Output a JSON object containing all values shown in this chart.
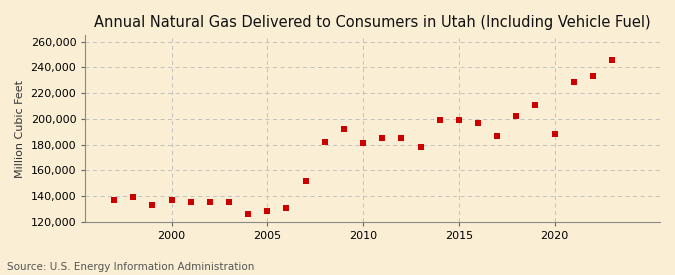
{
  "title": "Annual Natural Gas Delivered to Consumers in Utah (Including Vehicle Fuel)",
  "ylabel": "Million Cubic Feet",
  "source": "Source: U.S. Energy Information Administration",
  "background_color": "#faefd4",
  "plot_background_color": "#faefd4",
  "marker_color": "#cc0000",
  "grid_color": "#bbbbbb",
  "years": [
    1997,
    1998,
    1999,
    2000,
    2001,
    2002,
    2003,
    2004,
    2005,
    2006,
    2007,
    2008,
    2009,
    2010,
    2011,
    2012,
    2013,
    2014,
    2015,
    2016,
    2017,
    2018,
    2019,
    2020,
    2021,
    2022,
    2023
  ],
  "values": [
    137000,
    139000,
    133000,
    137000,
    135000,
    135000,
    135000,
    126000,
    128000,
    131000,
    152000,
    182000,
    192000,
    181000,
    185000,
    185000,
    178000,
    199000,
    199000,
    197000,
    187000,
    202000,
    211000,
    188000,
    229000,
    233000,
    246000
  ],
  "ylim": [
    120000,
    265000
  ],
  "yticks": [
    120000,
    140000,
    160000,
    180000,
    200000,
    220000,
    240000,
    260000
  ],
  "xlim": [
    1995.5,
    2025.5
  ],
  "xticks": [
    2000,
    2005,
    2010,
    2015,
    2020
  ],
  "title_fontsize": 10.5,
  "label_fontsize": 8,
  "tick_fontsize": 8,
  "source_fontsize": 7.5
}
